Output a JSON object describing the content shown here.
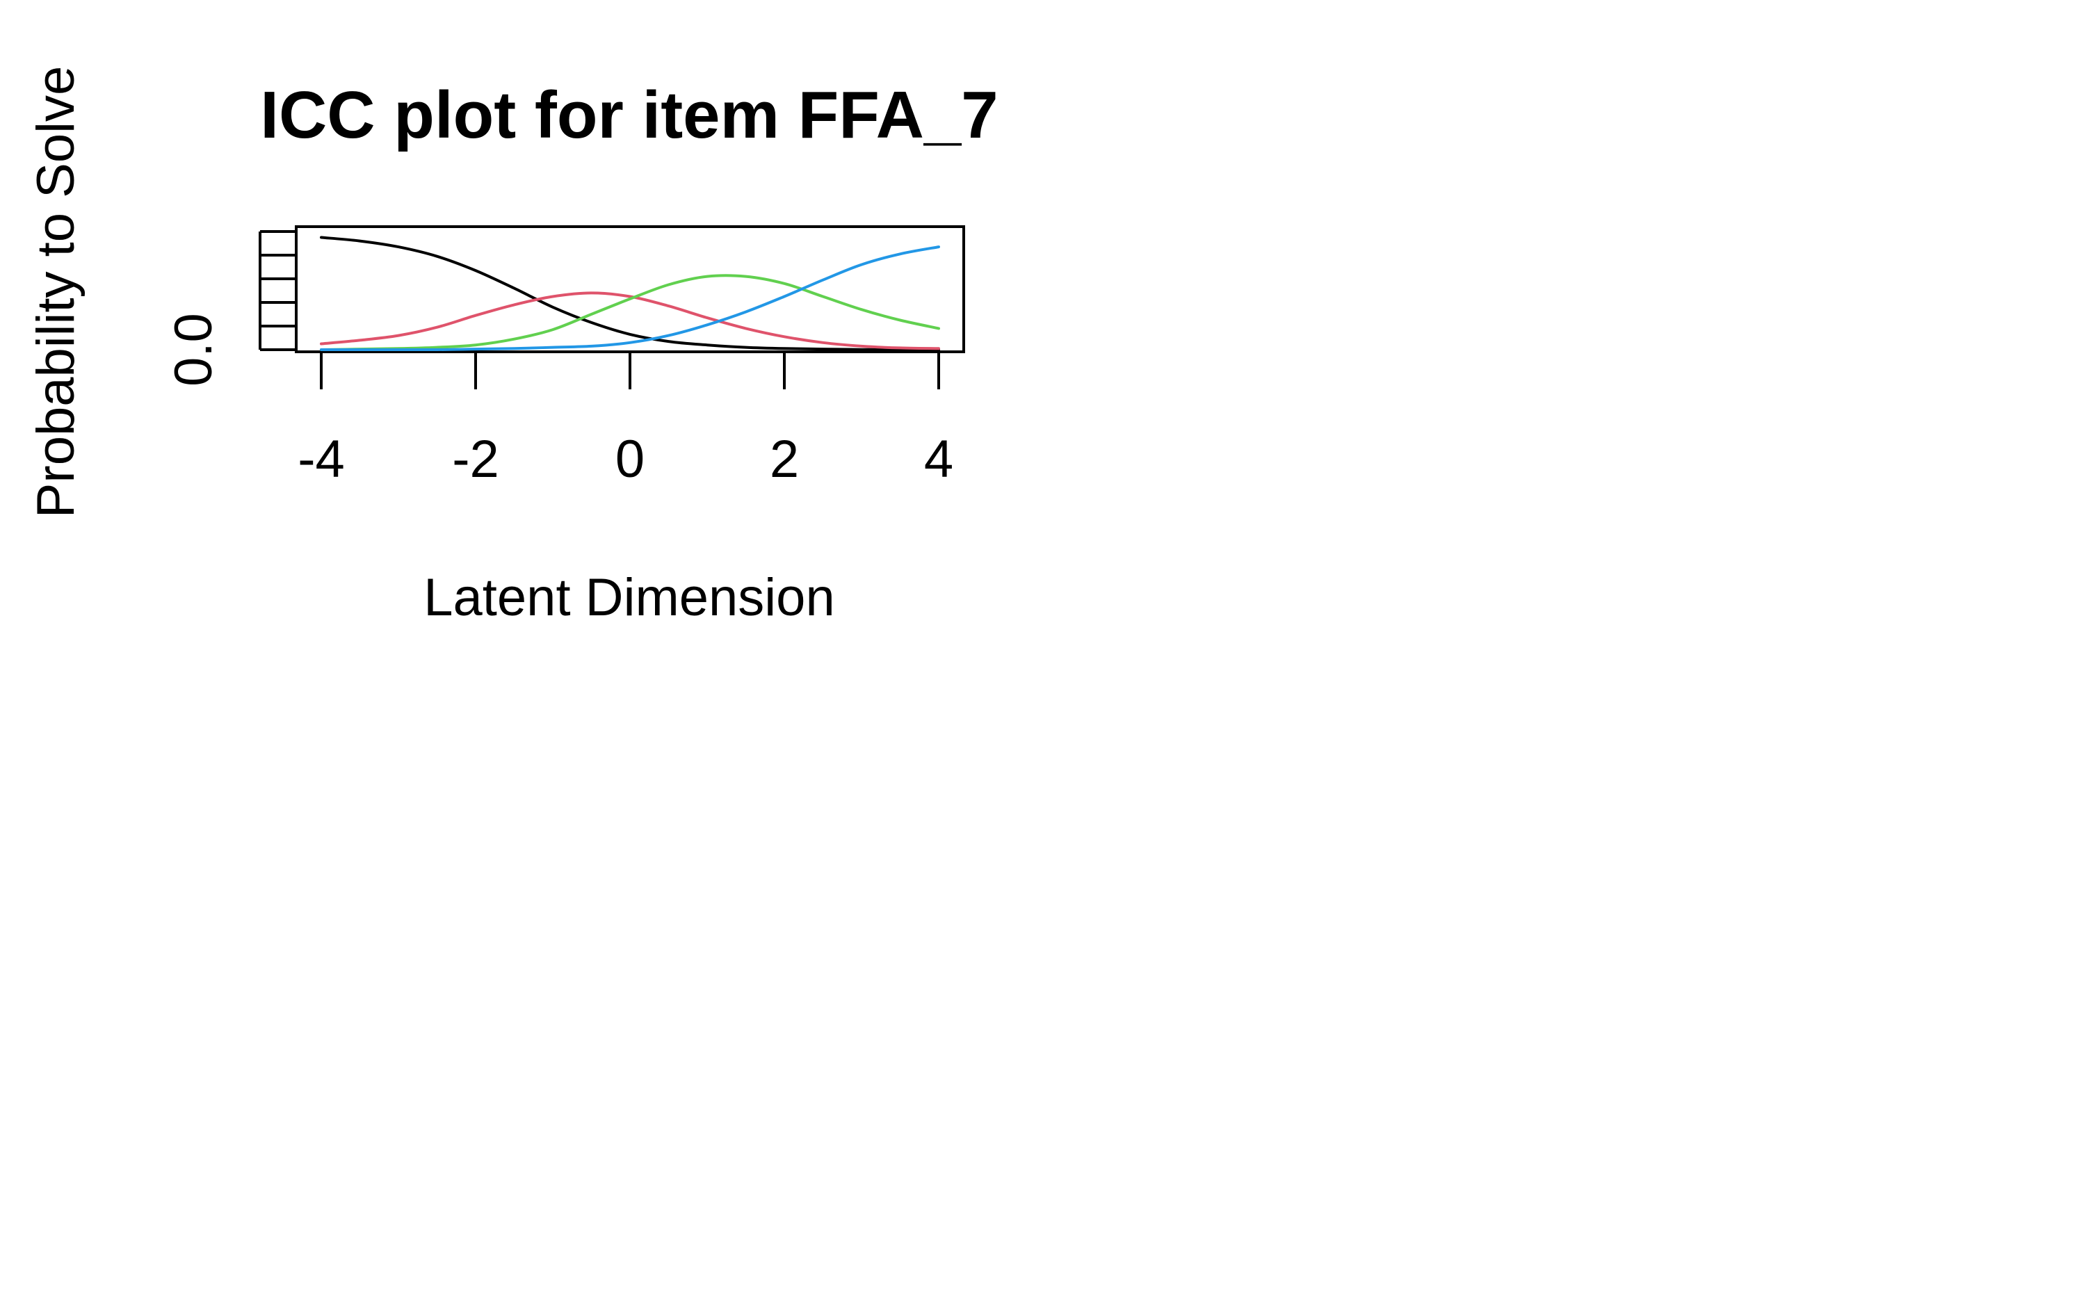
{
  "chart_data": {
    "type": "line",
    "title": "ICC plot for item FFA_7",
    "xlabel": "Latent Dimension",
    "ylabel": "Probability to Solve",
    "xlim": [
      -4,
      4
    ],
    "ylim": [
      0,
      1
    ],
    "x_ticks": [
      "-4",
      "-2",
      "0",
      "2",
      "4"
    ],
    "y_tick_labels": [
      "0.0"
    ],
    "grid": false,
    "series": [
      {
        "color": "#000000",
        "x": [
          -4,
          -3.5,
          -3,
          -2.5,
          -2,
          -1.5,
          -1,
          -0.5,
          0,
          0.5,
          1,
          1.5,
          2,
          2.5,
          3,
          3.5,
          4
        ],
        "y": [
          0.95,
          0.92,
          0.87,
          0.79,
          0.67,
          0.52,
          0.36,
          0.23,
          0.13,
          0.07,
          0.04,
          0.02,
          0.01,
          0.005,
          0.002,
          0.001,
          0.0
        ]
      },
      {
        "color": "#DF536B",
        "x": [
          -4,
          -3.5,
          -3,
          -2.5,
          -2,
          -1.5,
          -1,
          -0.5,
          0,
          0.5,
          1,
          1.5,
          2,
          2.5,
          3,
          3.5,
          4
        ],
        "y": [
          0.05,
          0.08,
          0.12,
          0.19,
          0.29,
          0.38,
          0.45,
          0.48,
          0.45,
          0.37,
          0.27,
          0.18,
          0.11,
          0.06,
          0.03,
          0.015,
          0.01
        ]
      },
      {
        "color": "#61D04F",
        "x": [
          -4,
          -3.5,
          -3,
          -2.5,
          -2,
          -1.5,
          -1,
          -0.5,
          0,
          0.5,
          1,
          1.5,
          2,
          2.5,
          3,
          3.5,
          4
        ],
        "y": [
          0.0,
          0.005,
          0.01,
          0.02,
          0.04,
          0.09,
          0.17,
          0.3,
          0.43,
          0.55,
          0.62,
          0.62,
          0.56,
          0.45,
          0.34,
          0.25,
          0.18
        ]
      },
      {
        "color": "#2297E6",
        "x": [
          -4,
          -3.5,
          -3,
          -2.5,
          -2,
          -1.5,
          -1,
          -0.5,
          0,
          0.5,
          1,
          1.5,
          2,
          2.5,
          3,
          3.5,
          4
        ],
        "y": [
          0.0,
          0.0,
          0.0,
          0.0,
          0.005,
          0.01,
          0.02,
          0.03,
          0.06,
          0.12,
          0.21,
          0.32,
          0.45,
          0.59,
          0.72,
          0.81,
          0.87
        ]
      }
    ]
  }
}
